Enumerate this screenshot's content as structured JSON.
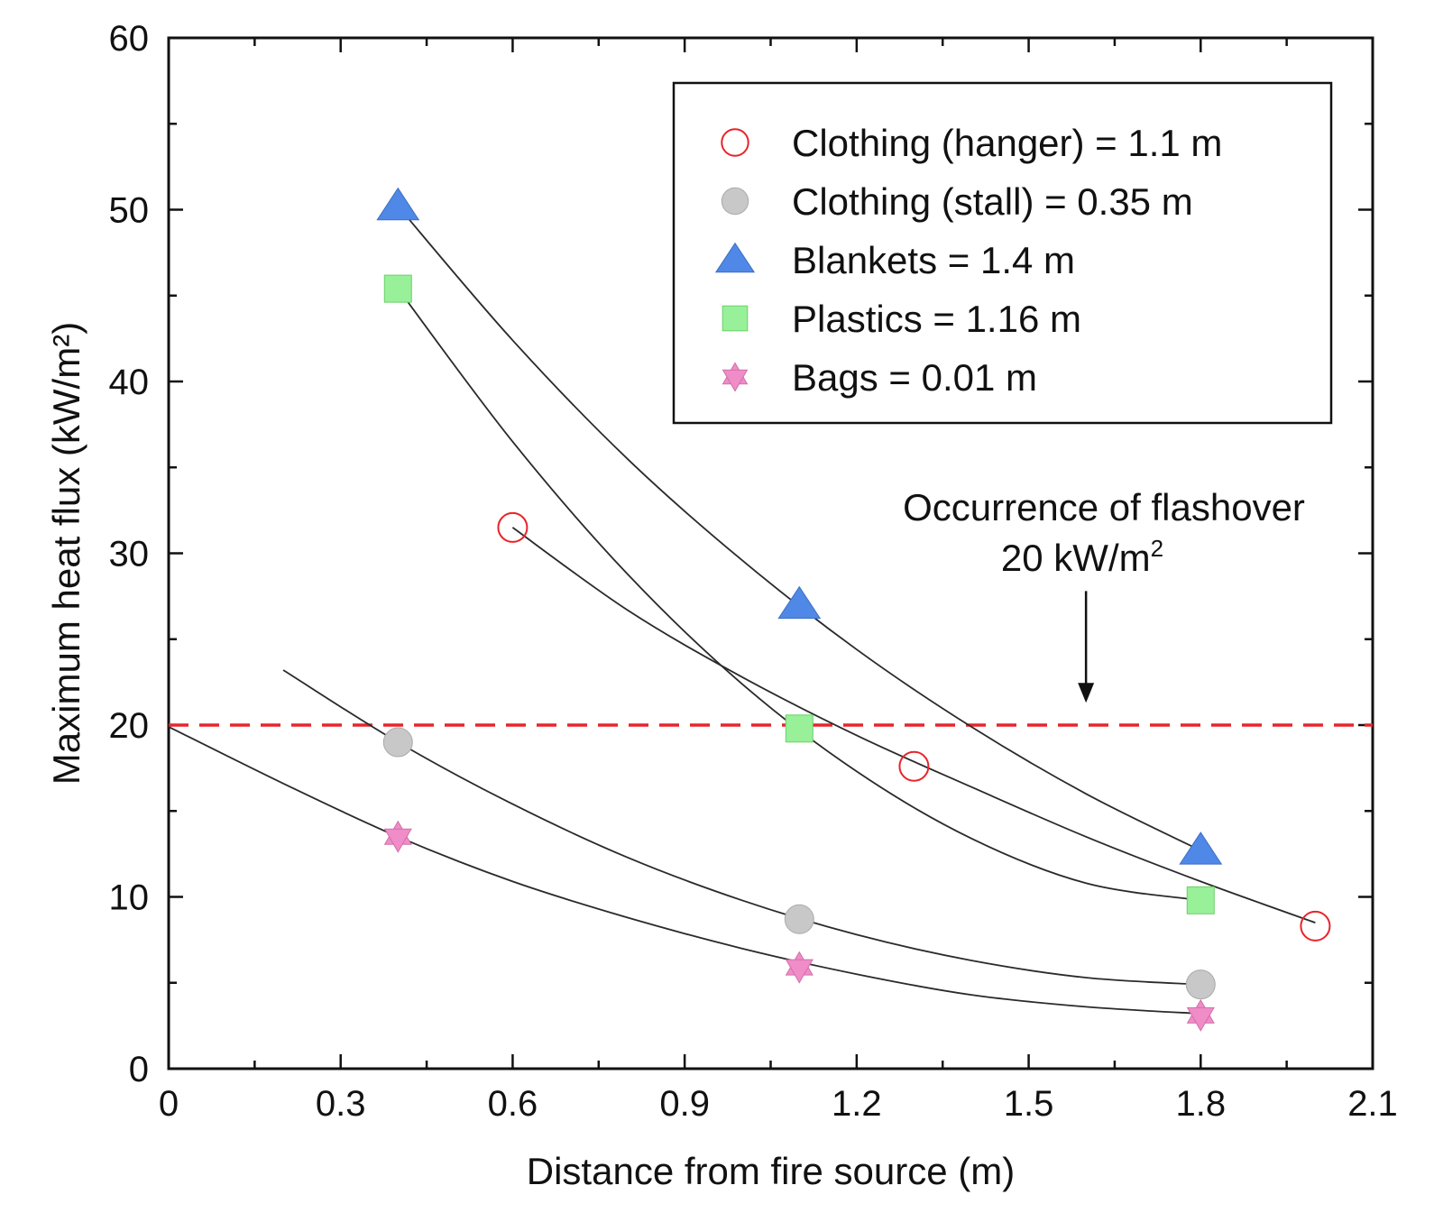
{
  "chart_data": {
    "type": "scatter",
    "title": "",
    "xlabel": "Distance from fire source (m)",
    "ylabel": "Maximum heat flux (kW/m²)",
    "xlim": [
      0,
      2.1
    ],
    "ylim": [
      0,
      60
    ],
    "x_ticks": [
      0,
      0.3,
      0.6,
      0.9,
      1.2,
      1.5,
      1.8,
      2.1
    ],
    "x_tick_labels": [
      "0",
      "0.3",
      "0.6",
      "0.9",
      "1.2",
      "1.5",
      "1.8",
      "2.1"
    ],
    "y_ticks": [
      0,
      10,
      20,
      30,
      40,
      50,
      60
    ],
    "y_tick_labels": [
      "0",
      "10",
      "20",
      "30",
      "40",
      "50",
      "60"
    ],
    "grid": false,
    "legend_position": "top-right",
    "series": [
      {
        "name": "Clothing (hanger) = 1.1 m",
        "marker": "open-circle",
        "color": "#e8242b",
        "x": [
          0.6,
          1.3,
          2.0
        ],
        "y": [
          31.5,
          17.6,
          8.3
        ],
        "fit": {
          "x": [
            0.6,
            0.8,
            1.0,
            1.2,
            1.4,
            1.6,
            1.8,
            2.0
          ],
          "y": [
            31.5,
            26.7,
            22.8,
            19.4,
            16.4,
            13.5,
            10.9,
            8.5
          ]
        }
      },
      {
        "name": "Clothing (stall) = 0.35 m",
        "marker": "gray-circle",
        "color": "#c8c8c8",
        "x": [
          0.4,
          1.1,
          1.8
        ],
        "y": [
          19.0,
          8.7,
          4.9
        ],
        "fit": {
          "x": [
            0.2,
            0.4,
            0.6,
            0.8,
            1.0,
            1.2,
            1.4,
            1.6,
            1.8
          ],
          "y": [
            23.2,
            19.0,
            15.4,
            12.3,
            9.8,
            7.8,
            6.3,
            5.3,
            4.9
          ]
        }
      },
      {
        "name": "Blankets = 1.4 m",
        "marker": "triangle",
        "color": "#4f88e6",
        "x": [
          0.4,
          1.1,
          1.8
        ],
        "y": [
          50.2,
          27.0,
          12.7
        ],
        "fit": {
          "x": [
            0.4,
            0.6,
            0.8,
            1.0,
            1.2,
            1.4,
            1.6,
            1.8
          ],
          "y": [
            50.2,
            42.4,
            35.5,
            29.6,
            24.4,
            19.9,
            16.0,
            12.7
          ]
        }
      },
      {
        "name": "Plastics = 1.16 m",
        "marker": "square",
        "color": "#98f098",
        "x": [
          0.4,
          1.1,
          1.8
        ],
        "y": [
          45.4,
          19.8,
          9.8
        ],
        "fit": {
          "x": [
            0.4,
            0.6,
            0.8,
            1.0,
            1.2,
            1.4,
            1.6,
            1.8
          ],
          "y": [
            45.4,
            36.5,
            28.8,
            22.4,
            17.3,
            13.4,
            10.8,
            9.8
          ]
        }
      },
      {
        "name": "Bags = 0.01 m",
        "marker": "star",
        "color": "#f08cc8",
        "x": [
          0.4,
          1.1,
          1.8
        ],
        "y": [
          13.5,
          5.9,
          3.1
        ],
        "fit": {
          "x": [
            0.0,
            0.2,
            0.4,
            0.6,
            0.8,
            1.0,
            1.2,
            1.4,
            1.6,
            1.8
          ],
          "y": [
            19.9,
            16.6,
            13.5,
            10.9,
            8.8,
            7.0,
            5.5,
            4.3,
            3.6,
            3.2
          ]
        }
      }
    ],
    "reference_line": {
      "y": 20,
      "color": "#e8242b",
      "style": "dashed"
    },
    "annotation": {
      "line1": "Occurrence of flashover",
      "line2_prefix": "20 kW/m",
      "line2_sup": "2",
      "arrow_x": 1.6,
      "arrow_from_y": 27.8,
      "arrow_to_y": 21.3
    }
  }
}
